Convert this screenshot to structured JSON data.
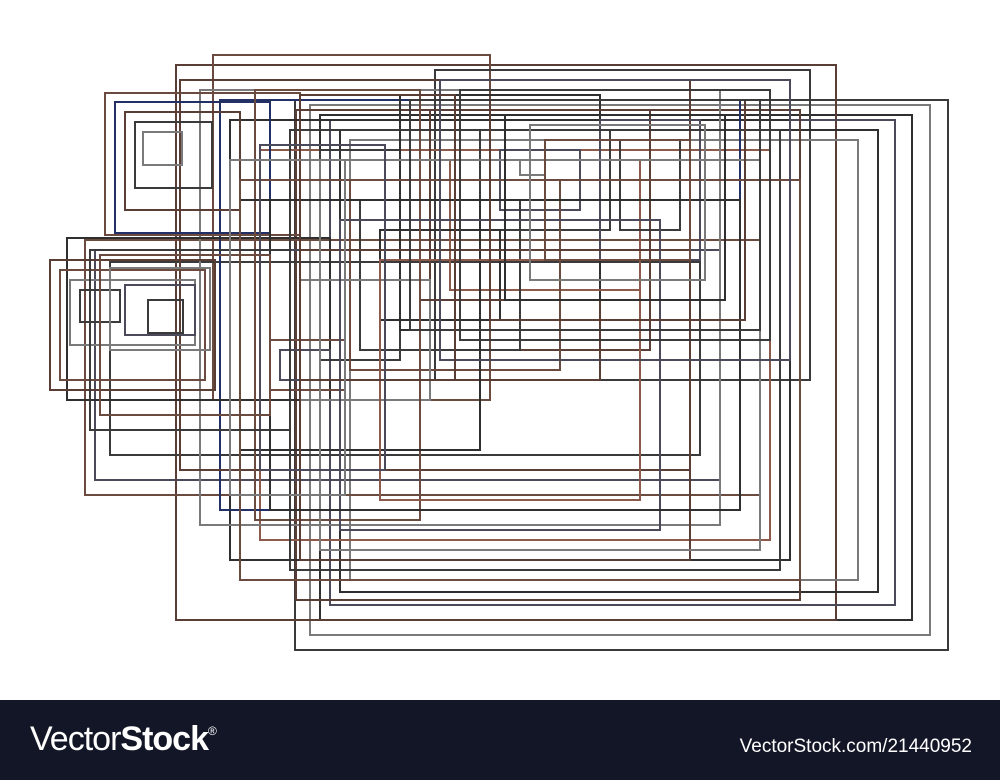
{
  "artwork": {
    "description_icon": "nested-rectangles-abstract",
    "palette": [
      "#3a3a3a",
      "#5a3e36",
      "#6b4a40",
      "#4a4a5a",
      "#7a7a7a",
      "#2f2f2f",
      "#233066",
      "#8b5a4a"
    ],
    "background": "#ffffff"
  },
  "footer": {
    "background": "#131627",
    "logo_light": "Vector",
    "logo_bold": "Stock",
    "logo_mark": "®",
    "stock_id": "VectorStock.com/21440952"
  }
}
